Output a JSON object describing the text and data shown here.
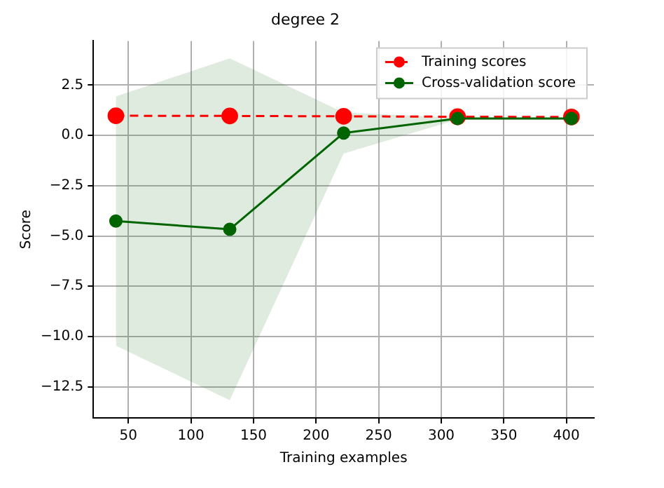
{
  "chart_data": {
    "type": "line",
    "title": "degree 2",
    "xlabel": "Training examples",
    "ylabel": "Score",
    "x": [
      40,
      131,
      222,
      313,
      404
    ],
    "series": [
      {
        "name": "Training scores",
        "color": "#ff0000",
        "line_style": "dashed",
        "values": [
          0.98,
          0.97,
          0.95,
          0.93,
          0.92
        ]
      },
      {
        "name": "Cross-validation score",
        "color": "#006400",
        "line_style": "solid",
        "values": [
          -4.26,
          -4.67,
          0.12,
          0.84,
          0.84
        ],
        "lower": [
          -10.46,
          -13.17,
          -0.9,
          0.79,
          0.79
        ],
        "upper": [
          1.94,
          3.83,
          1.14,
          0.89,
          0.89
        ]
      }
    ],
    "xlim": [
      22,
      422
    ],
    "ylim": [
      -14.05,
      4.7
    ],
    "xticks": [
      50,
      100,
      150,
      200,
      250,
      300,
      350,
      400
    ],
    "yticks": [
      {
        "value": -12.5,
        "label": "−12.5"
      },
      {
        "value": -10,
        "label": "−10.0"
      },
      {
        "value": -7.5,
        "label": "−7.5"
      },
      {
        "value": -5,
        "label": "−5.0"
      },
      {
        "value": -2.5,
        "label": "−2.5"
      },
      {
        "value": 0,
        "label": "0.0"
      },
      {
        "value": 2.5,
        "label": "2.5"
      }
    ],
    "grid": true,
    "legend": "top right",
    "marker": "circle"
  }
}
